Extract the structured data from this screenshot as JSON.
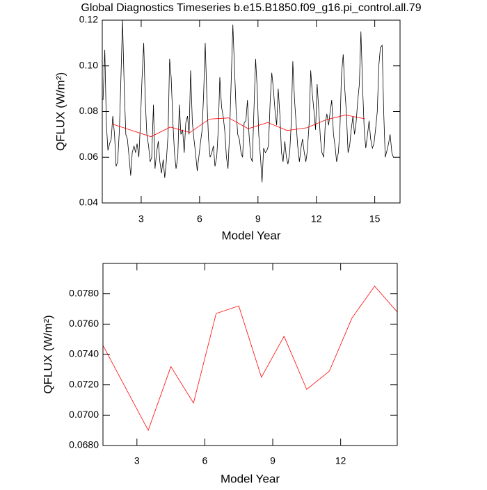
{
  "chart_data": [
    {
      "type": "line",
      "title": "Global Diagnostics Timeseries b.e15.B1850.f09_g16.pi_control.all.79",
      "xlabel": "Model Year",
      "ylabel": "QFLUX (W/m²)",
      "xlim": [
        1,
        16.3
      ],
      "xticks": [
        3,
        6,
        9,
        12,
        15
      ],
      "ylim": [
        0.04,
        0.12
      ],
      "yticks": [
        0.04,
        0.06,
        0.08,
        {
          "value": 0.1,
          "label": "0.10"
        },
        0.12
      ],
      "series": [
        {
          "color": "#000000",
          "x": [
            1.04,
            1.13,
            1.21,
            1.29,
            1.38,
            1.46,
            1.54,
            1.63,
            1.71,
            1.79,
            1.88,
            1.96,
            2.04,
            2.13,
            2.21,
            2.29,
            2.38,
            2.46,
            2.54,
            2.63,
            2.71,
            2.79,
            2.88,
            2.96,
            3.04,
            3.13,
            3.21,
            3.29,
            3.38,
            3.46,
            3.54,
            3.63,
            3.71,
            3.79,
            3.88,
            3.96,
            4.04,
            4.13,
            4.21,
            4.29,
            4.38,
            4.46,
            4.54,
            4.63,
            4.71,
            4.79,
            4.88,
            4.96,
            5.04,
            5.13,
            5.21,
            5.29,
            5.38,
            5.46,
            5.54,
            5.63,
            5.71,
            5.79,
            5.88,
            5.96,
            6.04,
            6.13,
            6.21,
            6.29,
            6.38,
            6.46,
            6.54,
            6.63,
            6.71,
            6.79,
            6.88,
            6.96,
            7.04,
            7.13,
            7.21,
            7.29,
            7.38,
            7.46,
            7.54,
            7.63,
            7.71,
            7.79,
            7.88,
            7.96,
            8.04,
            8.13,
            8.21,
            8.29,
            8.38,
            8.46,
            8.54,
            8.63,
            8.71,
            8.79,
            8.88,
            8.96,
            9.04,
            9.13,
            9.21,
            9.29,
            9.38,
            9.46,
            9.54,
            9.63,
            9.71,
            9.79,
            9.88,
            9.96,
            10.04,
            10.13,
            10.21,
            10.29,
            10.38,
            10.46,
            10.54,
            10.63,
            10.71,
            10.79,
            10.88,
            10.96,
            11.04,
            11.13,
            11.21,
            11.29,
            11.38,
            11.46,
            11.54,
            11.63,
            11.71,
            11.79,
            11.88,
            11.96,
            12.04,
            12.13,
            12.21,
            12.29,
            12.38,
            12.46,
            12.54,
            12.63,
            12.71,
            12.79,
            12.88,
            12.96,
            13.04,
            13.13,
            13.21,
            13.29,
            13.38,
            13.46,
            13.54,
            13.63,
            13.71,
            13.79,
            13.88,
            13.96,
            14.04,
            14.13,
            14.21,
            14.29,
            14.38,
            14.46,
            14.54,
            14.63,
            14.71,
            14.79,
            14.88,
            14.96,
            15.04,
            15.13,
            15.21,
            15.29,
            15.38,
            15.46,
            15.54,
            15.63,
            15.71,
            15.79,
            15.88,
            15.96
          ],
          "values": [
            0.085,
            0.107,
            0.075,
            0.063,
            0.066,
            0.068,
            0.078,
            0.07,
            0.056,
            0.058,
            0.072,
            0.095,
            0.12,
            0.09,
            0.07,
            0.068,
            0.06,
            0.052,
            0.062,
            0.065,
            0.062,
            0.066,
            0.06,
            0.075,
            0.094,
            0.11,
            0.085,
            0.07,
            0.065,
            0.058,
            0.06,
            0.083,
            0.055,
            0.062,
            0.067,
            0.058,
            0.053,
            0.059,
            0.051,
            0.058,
            0.07,
            0.103,
            0.095,
            0.075,
            0.062,
            0.055,
            0.06,
            0.083,
            0.07,
            0.072,
            0.062,
            0.075,
            0.078,
            0.07,
            0.098,
            0.075,
            0.068,
            0.062,
            0.054,
            0.06,
            0.066,
            0.072,
            0.088,
            0.11,
            0.085,
            0.068,
            0.06,
            0.062,
            0.065,
            0.056,
            0.06,
            0.072,
            0.095,
            0.082,
            0.078,
            0.072,
            0.06,
            0.055,
            0.07,
            0.095,
            0.118,
            0.1,
            0.08,
            0.07,
            0.068,
            0.062,
            0.06,
            0.075,
            0.076,
            0.085,
            0.07,
            0.06,
            0.058,
            0.08,
            0.103,
            0.09,
            0.07,
            0.06,
            0.049,
            0.064,
            0.062,
            0.063,
            0.065,
            0.085,
            0.097,
            0.09,
            0.08,
            0.074,
            0.09,
            0.078,
            0.062,
            0.058,
            0.067,
            0.06,
            0.057,
            0.062,
            0.075,
            0.102,
            0.085,
            0.075,
            0.065,
            0.058,
            0.064,
            0.068,
            0.062,
            0.058,
            0.063,
            0.075,
            0.098,
            0.088,
            0.08,
            0.072,
            0.092,
            0.08,
            0.068,
            0.062,
            0.06,
            0.075,
            0.079,
            0.074,
            0.08,
            0.085,
            0.07,
            0.065,
            0.058,
            0.062,
            0.072,
            0.096,
            0.105,
            0.09,
            0.08,
            0.062,
            0.065,
            0.072,
            0.078,
            0.07,
            0.075,
            0.085,
            0.092,
            0.115,
            0.09,
            0.072,
            0.064,
            0.07,
            0.076,
            0.068,
            0.064,
            0.066,
            0.072,
            0.08,
            0.1,
            0.108,
            0.109,
            0.08,
            0.06,
            0.063,
            0.066,
            0.07,
            0.062,
            0.06
          ]
        },
        {
          "color": "#ff0000",
          "x": [
            1.5,
            2.5,
            3.5,
            4.5,
            5.5,
            6.5,
            7.5,
            8.5,
            9.5,
            10.5,
            11.5,
            12.5,
            13.5,
            14.5
          ],
          "values": [
            0.0746,
            0.0718,
            0.069,
            0.0732,
            0.0708,
            0.0767,
            0.0772,
            0.0725,
            0.0752,
            0.0717,
            0.0729,
            0.0764,
            0.0785,
            0.0768
          ]
        }
      ]
    },
    {
      "type": "line",
      "xlabel": "Model Year",
      "ylabel": "QFLUX (W/m²)",
      "xlim": [
        1.5,
        14.5
      ],
      "xticks": [
        3,
        6,
        9,
        12
      ],
      "ylim": [
        0.068,
        0.08
      ],
      "yticks": [
        {
          "value": 0.068,
          "label": "0.0680"
        },
        {
          "value": 0.07,
          "label": "0.0700"
        },
        {
          "value": 0.072,
          "label": "0.0720"
        },
        {
          "value": 0.074,
          "label": "0.0740"
        },
        {
          "value": 0.076,
          "label": "0.0760"
        },
        {
          "value": 0.078,
          "label": "0.0780"
        }
      ],
      "series": [
        {
          "color": "#ff0000",
          "x": [
            1.5,
            2.5,
            3.5,
            4.5,
            5.5,
            6.5,
            7.5,
            8.5,
            9.5,
            10.5,
            11.5,
            12.5,
            13.5,
            14.5
          ],
          "values": [
            0.0746,
            0.0718,
            0.069,
            0.0732,
            0.0708,
            0.0767,
            0.0772,
            0.0725,
            0.0752,
            0.0717,
            0.0729,
            0.0764,
            0.0785,
            0.0768
          ]
        }
      ]
    }
  ]
}
